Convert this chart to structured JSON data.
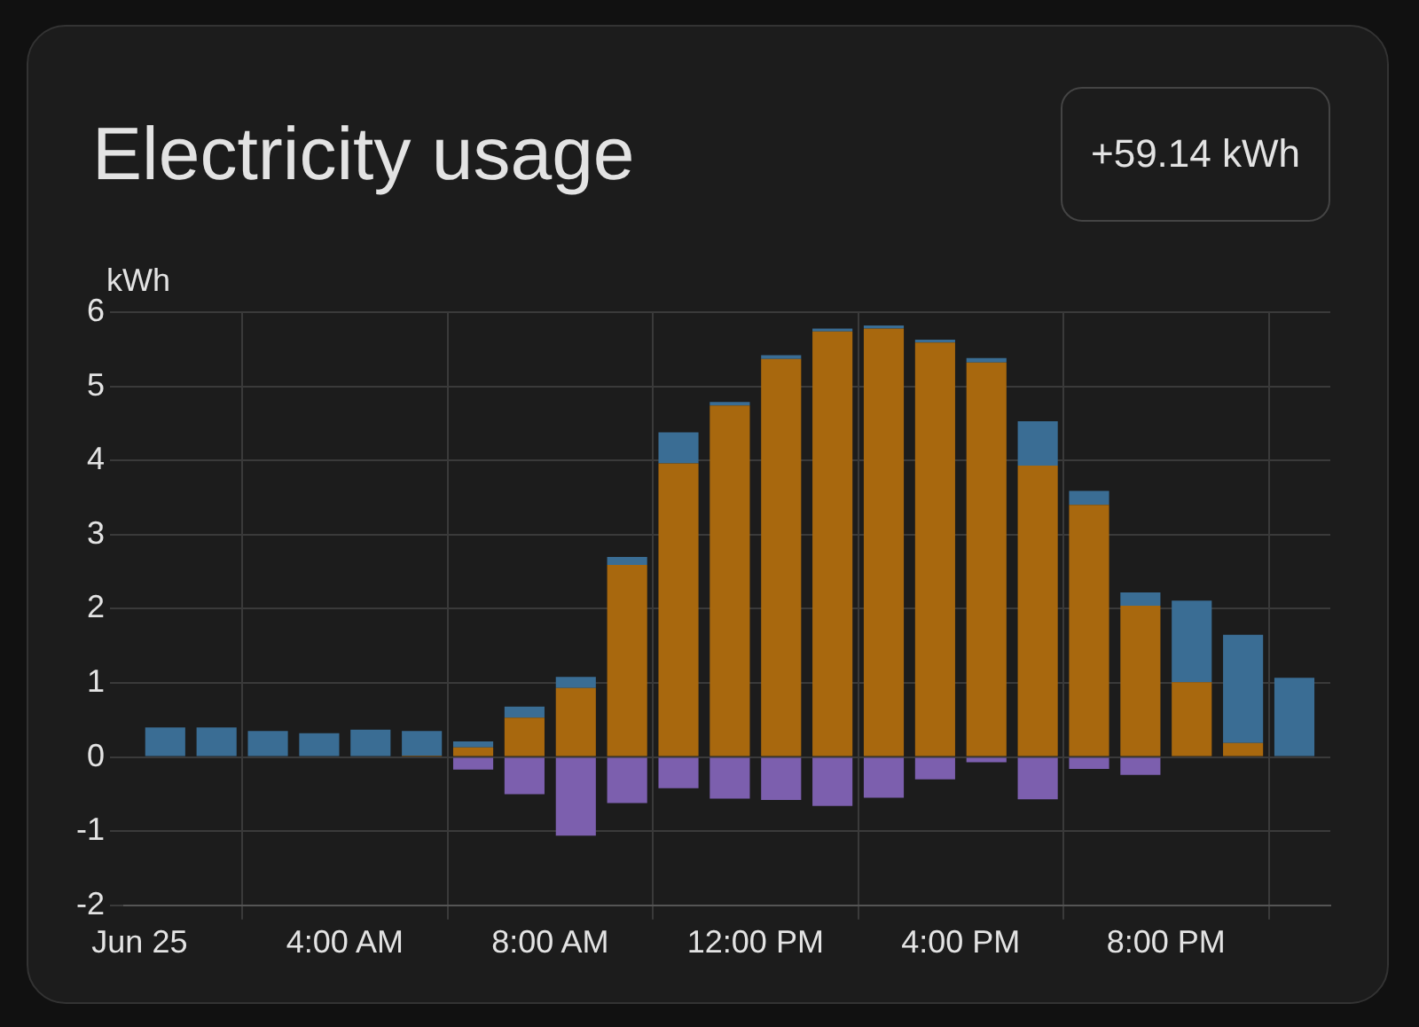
{
  "chart_data": {
    "type": "bar",
    "title": "Electricity usage",
    "ylabel": "kWh",
    "annotations": [
      "+59.14 kWh"
    ],
    "x": [
      0.5,
      1.5,
      2.5,
      3.5,
      4.5,
      5.5,
      6.5,
      7.5,
      8.5,
      9.5,
      10.5,
      11.5,
      12.5,
      13.5,
      14.5,
      15.5,
      16.5,
      17.5,
      18.5,
      19.5,
      20.5,
      21.5,
      22.5
    ],
    "stacked": true,
    "series": [
      {
        "color": "#a8680e",
        "values": [
          null,
          null,
          null,
          null,
          null,
          0.02,
          0.13,
          0.53,
          0.93,
          2.59,
          3.96,
          4.74,
          5.37,
          5.74,
          5.78,
          5.59,
          5.32,
          3.93,
          3.4,
          2.04,
          1.01,
          0.19,
          null
        ]
      },
      {
        "color": "#3a6d94",
        "values": [
          0.4,
          0.4,
          0.35,
          0.32,
          0.37,
          0.33,
          0.08,
          0.15,
          0.15,
          0.11,
          0.42,
          0.05,
          0.05,
          0.04,
          0.04,
          0.04,
          0.06,
          0.6,
          0.19,
          0.18,
          1.1,
          1.46,
          1.07
        ]
      },
      {
        "color": "#7c5fae",
        "values": [
          null,
          null,
          null,
          null,
          null,
          null,
          -0.17,
          -0.5,
          -1.06,
          -0.62,
          -0.42,
          -0.56,
          -0.58,
          -0.66,
          -0.55,
          -0.3,
          -0.07,
          -0.57,
          -0.16,
          -0.24,
          null,
          null,
          null
        ]
      }
    ],
    "xlim": [
      -0.3,
      23.2
    ],
    "xticks": [
      {
        "value": 0,
        "label": "Jun 25"
      },
      {
        "value": 4,
        "label": "4:00 AM"
      },
      {
        "value": 8,
        "label": "8:00 AM"
      },
      {
        "value": 12,
        "label": "12:00 PM"
      },
      {
        "value": 16,
        "label": "4:00 PM"
      },
      {
        "value": 20,
        "label": "8:00 PM"
      }
    ],
    "ylim": [
      -2,
      6
    ],
    "yticks": [
      -2,
      -1,
      0,
      1,
      2,
      3,
      4,
      5,
      6
    ],
    "grid": true
  }
}
